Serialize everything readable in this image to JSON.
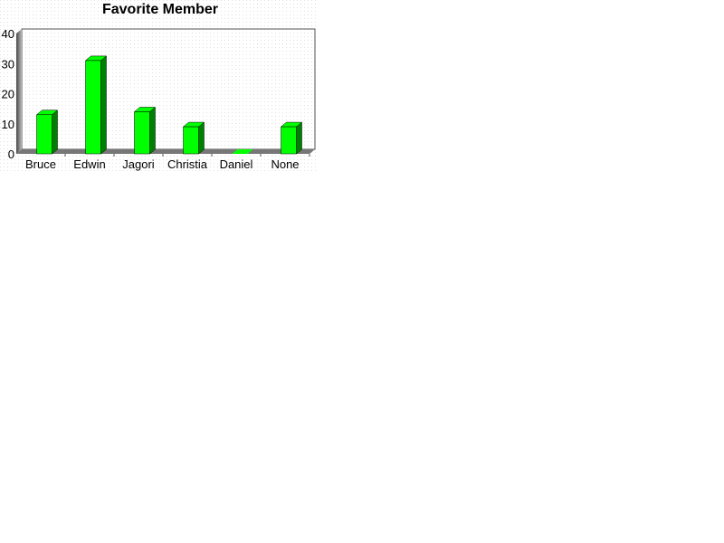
{
  "chart_data": {
    "type": "bar",
    "title": "Favorite Member",
    "categories": [
      "Bruce",
      "Edwin",
      "Jagori",
      "Christia",
      "Daniel",
      "None"
    ],
    "values": [
      13,
      31,
      14,
      9,
      0,
      9
    ],
    "ylim": [
      0,
      40
    ],
    "yticks": [
      0,
      10,
      20,
      30,
      40
    ],
    "xlabel": "",
    "ylabel": "",
    "grid": false,
    "three_d": true,
    "bar_color": "#00ff00",
    "bar_side_color": "#008000"
  }
}
